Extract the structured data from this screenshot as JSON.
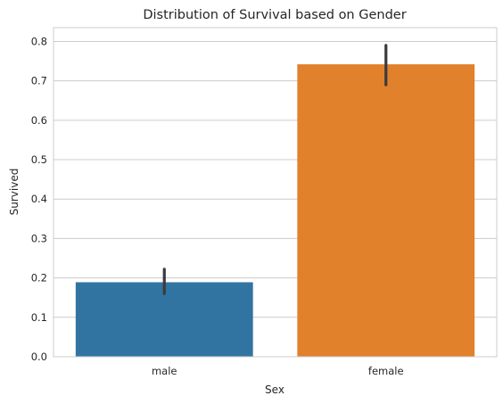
{
  "chart_data": {
    "type": "bar",
    "title": "Distribution of Survival based on Gender",
    "xlabel": "Sex",
    "ylabel": "Survived",
    "categories": [
      "male",
      "female"
    ],
    "values": [
      0.189,
      0.742
    ],
    "error_bars": [
      [
        0.16,
        0.222
      ],
      [
        0.69,
        0.79
      ]
    ],
    "ylim": [
      0,
      0.835
    ],
    "yticks": [
      0.0,
      0.1,
      0.2,
      0.3,
      0.4,
      0.5,
      0.6,
      0.7,
      0.8
    ],
    "ytick_labels": [
      "0.0",
      "0.1",
      "0.2",
      "0.3",
      "0.4",
      "0.5",
      "0.6",
      "0.7",
      "0.8"
    ],
    "grid": "horizontal",
    "colors": [
      "#3274a1",
      "#e1812c"
    ],
    "error_bar_color": "#3b3b3b"
  }
}
